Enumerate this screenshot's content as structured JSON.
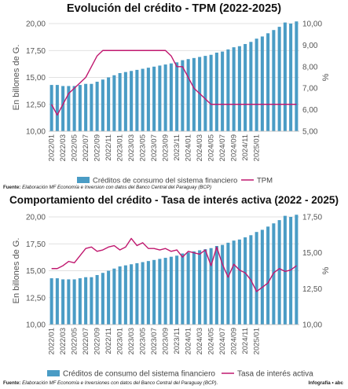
{
  "page": {
    "credit": "Infografía • abc"
  },
  "chart_data": [
    {
      "type": "bar",
      "title": "Evolución del crédito - TPM (2022-2025)",
      "ylabel": "En billones de G.",
      "y2label": "%",
      "ylim": [
        10,
        20
      ],
      "y2lim": [
        5,
        10
      ],
      "yticks": [
        "10,00",
        "12,50",
        "15,00",
        "17,50",
        "20,00"
      ],
      "y2ticks": [
        "5,00",
        "6,00",
        "7,00",
        "8,00",
        "9,00",
        "10,00"
      ],
      "xtick_labels": [
        "2022/01",
        "2022/03",
        "2022/05",
        "2022/07",
        "2022/09",
        "2022/11",
        "2023/01",
        "2023/03",
        "2023/05",
        "2023/07",
        "2023/09",
        "2023/11",
        "2024/01",
        "2024/03",
        "2024/05",
        "2024/07",
        "2024/09",
        "2024/11",
        "2025/01"
      ],
      "grid": true,
      "legend": "bottom",
      "source": {
        "label": "Fuente:",
        "text": "Elaboración MF Economía e Inversion con datos del Banco Central del Paraguay (BCP)"
      },
      "series": [
        {
          "name": "Créditos de consumo del sistema financiero",
          "type": "bar",
          "axis": "left",
          "color": "#4a9cc5",
          "values": [
            14.3,
            14.3,
            14.2,
            14.2,
            14.2,
            14.3,
            14.4,
            14.4,
            14.6,
            14.8,
            15.0,
            15.2,
            15.4,
            15.5,
            15.6,
            15.7,
            15.8,
            15.9,
            16.0,
            16.1,
            16.2,
            16.3,
            16.4,
            16.6,
            16.7,
            16.8,
            16.9,
            17.0,
            17.1,
            17.3,
            17.4,
            17.6,
            17.8,
            17.9,
            18.1,
            18.3,
            18.6,
            18.8,
            19.1,
            19.4,
            19.7,
            20.1,
            20.0,
            20.2
          ]
        },
        {
          "name": "TPM",
          "type": "line",
          "axis": "right",
          "color": "#c0186f",
          "values": [
            6.25,
            5.75,
            6.25,
            6.75,
            7.0,
            7.25,
            7.5,
            8.0,
            8.5,
            8.75,
            8.75,
            8.75,
            8.75,
            8.75,
            8.75,
            8.75,
            8.75,
            8.75,
            8.75,
            8.75,
            8.75,
            8.5,
            8.0,
            8.0,
            7.5,
            7.0,
            6.75,
            6.5,
            6.25,
            6.25,
            6.25,
            6.25,
            6.25,
            6.25,
            6.25,
            6.25,
            6.25,
            6.25,
            6.25,
            6.25,
            6.25,
            6.25,
            6.25,
            6.25
          ]
        }
      ]
    },
    {
      "type": "bar",
      "title": "Comportamiento del crédito - Tasa de interés activa (2022 - 2025)",
      "ylabel": "En billones de G.",
      "y2label": "%",
      "ylim": [
        10,
        20
      ],
      "y2lim": [
        10,
        17.5
      ],
      "yticks": [
        "10,00",
        "12,50",
        "15,00",
        "17,50",
        "20,00"
      ],
      "y2ticks": [
        "10,00",
        "12,50",
        "15,00",
        "17,50"
      ],
      "xtick_labels": [
        "2022/01",
        "2022/03",
        "2022/05",
        "2022/07",
        "2022/09",
        "2022/11",
        "2023/01",
        "2023/03",
        "2023/05",
        "2023/07",
        "2023/09",
        "2023/11",
        "2024/01",
        "2024/03",
        "2024/05",
        "2024/07",
        "2024/09",
        "2024/11",
        "2025/01"
      ],
      "grid": true,
      "legend": "bottom",
      "source": {
        "label": "Fuente:",
        "text": "Elaboración MF Economía e Inversiones con datos del Banco Central del Paraguay (BCP)."
      },
      "series": [
        {
          "name": "Créditos de consumo del sistema financiero",
          "type": "bar",
          "axis": "left",
          "color": "#4a9cc5",
          "values": [
            14.3,
            14.3,
            14.2,
            14.2,
            14.2,
            14.3,
            14.4,
            14.4,
            14.6,
            14.8,
            15.0,
            15.2,
            15.4,
            15.5,
            15.6,
            15.7,
            15.8,
            15.9,
            16.0,
            16.1,
            16.2,
            16.3,
            16.4,
            16.6,
            16.7,
            16.8,
            16.9,
            17.0,
            17.1,
            17.3,
            17.4,
            17.6,
            17.8,
            17.9,
            18.1,
            18.3,
            18.6,
            18.8,
            19.1,
            19.4,
            19.7,
            20.1,
            20.0,
            20.2
          ]
        },
        {
          "name": "Tasa de interés activa",
          "type": "line",
          "axis": "right",
          "color": "#c0186f",
          "values": [
            13.9,
            13.9,
            14.1,
            14.4,
            14.3,
            14.8,
            15.3,
            15.4,
            15.1,
            15.2,
            15.4,
            15.5,
            15.2,
            15.4,
            16.0,
            15.5,
            15.7,
            15.3,
            15.3,
            15.2,
            15.3,
            15.1,
            15.2,
            14.7,
            15.1,
            15.0,
            14.9,
            15.2,
            14.1,
            15.4,
            14.2,
            13.3,
            14.2,
            13.8,
            13.6,
            13.1,
            12.3,
            12.6,
            12.9,
            13.6,
            13.9,
            13.7,
            13.8,
            14.1
          ]
        }
      ]
    }
  ]
}
